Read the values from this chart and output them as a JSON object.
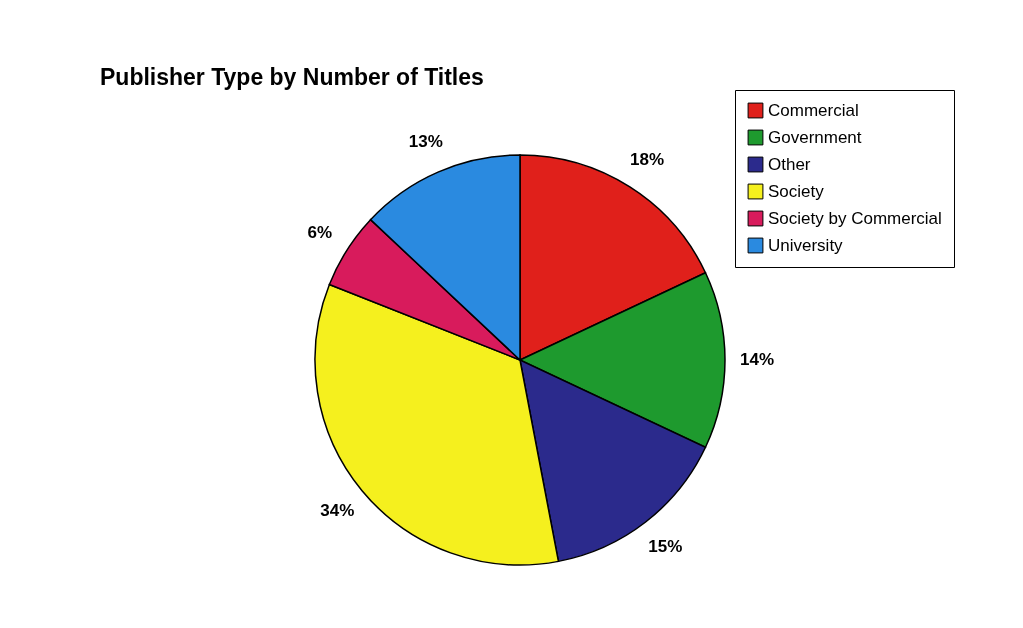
{
  "chart_data": {
    "type": "pie",
    "title": "Publisher Type by Number of Titles",
    "categories": [
      "Commercial",
      "Government",
      "Other",
      "Society",
      "Society by Commercial",
      "University"
    ],
    "values": [
      18,
      14,
      15,
      34,
      6,
      13
    ],
    "value_labels": [
      "18%",
      "14%",
      "15%",
      "34%",
      "6%",
      "13%"
    ],
    "colors": [
      "#e0201b",
      "#1e9a2e",
      "#2b2a8c",
      "#f5f01e",
      "#d81b5c",
      "#2a8ae0"
    ],
    "legend": "top right"
  }
}
